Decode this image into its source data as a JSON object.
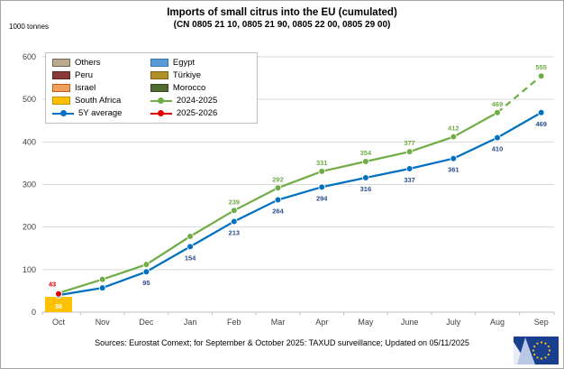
{
  "header": {
    "title": "Imports of small citrus into the EU (cumulated)",
    "subtitle": "(CN 0805 21 10, 0805 21 90, 0805 22 00, 0805 29 00)",
    "unit_label": "1000 tonnes"
  },
  "footer": {
    "sources": "Sources: Eurostat Comext; for September & October 2025: TAXUD surveillance; Updated on 05/11/2025"
  },
  "legend": {
    "items": [
      {
        "label": "Others",
        "swatch": "rect",
        "color": "#b9ab8d",
        "border": "#6f6551"
      },
      {
        "label": "Egypt",
        "swatch": "rect",
        "color": "#5b9bd5",
        "border": "#2e75b6"
      },
      {
        "label": "Peru",
        "swatch": "rect",
        "color": "#8b3a3a",
        "border": "#5a2323"
      },
      {
        "label": "Türkiye",
        "swatch": "rect",
        "color": "#b08f26",
        "border": "#7a6310"
      },
      {
        "label": "Israel",
        "swatch": "rect",
        "color": "#f2a05e",
        "border": "#c55a11"
      },
      {
        "label": "Morocco",
        "swatch": "rect",
        "color": "#4f6b31",
        "border": "#344a1d"
      },
      {
        "label": "South Africa",
        "swatch": "rect",
        "color": "#ffc000",
        "border": "#bf9000"
      },
      {
        "label": "2024-2025",
        "swatch": "line",
        "color": "#70ad47"
      },
      {
        "label": "5Y average",
        "swatch": "line",
        "color": "#0070c0"
      },
      {
        "label": "2025-2026",
        "swatch": "line",
        "color": "#e00000"
      }
    ]
  },
  "chart_data": {
    "type": "line",
    "title": "Imports of small citrus into the EU (cumulated)",
    "subtitle": "(CN 0805 21 10, 0805 21 90, 0805 22 00, 0805 29 00)",
    "ylabel": "1000 tonnes",
    "categories": [
      "Oct",
      "Nov",
      "Dec",
      "Jan",
      "Feb",
      "Mar",
      "Apr",
      "May",
      "June",
      "July",
      "Aug",
      "Sep"
    ],
    "ylim": [
      0,
      600
    ],
    "yticks": [
      0,
      100,
      200,
      300,
      400,
      500,
      600
    ],
    "grid": "horizontal",
    "legend_position": "top-left-inside",
    "series": [
      {
        "name": "South Africa",
        "type": "bar",
        "color": "#ffc000",
        "values": [
          36,
          null,
          null,
          null,
          null,
          null,
          null,
          null,
          null,
          null,
          null,
          null
        ],
        "labels": [
          "36",
          null,
          null,
          null,
          null,
          null,
          null,
          null,
          null,
          null,
          null,
          null
        ],
        "label_color": "#ffffff",
        "label_position": "inside-bottom"
      },
      {
        "name": "2024-2025",
        "type": "line",
        "color": "#70ad47",
        "label_color": "#70ad47",
        "values": [
          45,
          77,
          112,
          178,
          239,
          292,
          331,
          354,
          377,
          412,
          469,
          555
        ],
        "labels": [
          null,
          null,
          null,
          null,
          "239",
          "292",
          "331",
          "354",
          "377",
          "412",
          "469",
          "555"
        ],
        "label_position": "above",
        "dashed_from_index": 10
      },
      {
        "name": "5Y average",
        "type": "line",
        "color": "#0070c0",
        "label_color": "#2a4d8f",
        "values": [
          40,
          57,
          95,
          154,
          213,
          264,
          294,
          316,
          337,
          361,
          410,
          469
        ],
        "labels": [
          null,
          null,
          "95",
          "154",
          "213",
          "264",
          "294",
          "316",
          "337",
          "361",
          "410",
          "469"
        ],
        "label_position": "below"
      },
      {
        "name": "2025-2026",
        "type": "line",
        "color": "#e00000",
        "label_color": "#e00000",
        "values": [
          43,
          null,
          null,
          null,
          null,
          null,
          null,
          null,
          null,
          null,
          null,
          null
        ],
        "labels": [
          "43",
          null,
          null,
          null,
          null,
          null,
          null,
          null,
          null,
          null,
          null,
          null
        ],
        "label_position": "above-left"
      }
    ]
  }
}
